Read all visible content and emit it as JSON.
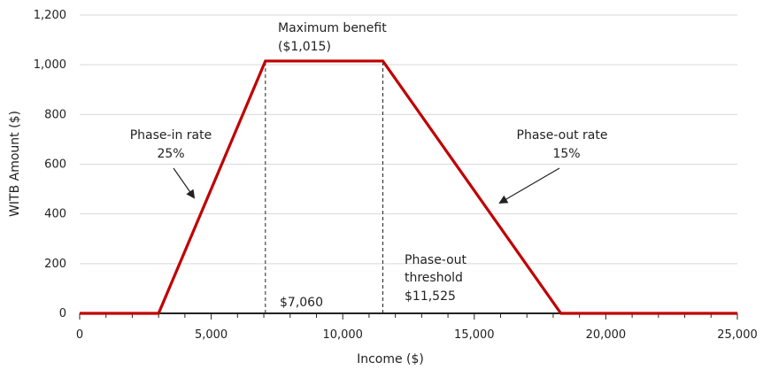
{
  "chart_data": {
    "type": "line",
    "title": "",
    "xlabel": "Income ($)",
    "ylabel": "WITB Amount ($)",
    "xlim": [
      0,
      25000
    ],
    "ylim": [
      0,
      1200
    ],
    "x_ticks": [
      0,
      5000,
      10000,
      15000,
      20000,
      25000
    ],
    "x_tick_labels": [
      "0",
      "5,000",
      "10,000",
      "15,000",
      "20,000",
      "25,000"
    ],
    "y_ticks": [
      0,
      200,
      400,
      600,
      800,
      1000,
      1200
    ],
    "y_tick_labels": [
      "0",
      "200",
      "400",
      "600",
      "800",
      "1,000",
      "1,200"
    ],
    "grid": "horizontal",
    "series": [
      {
        "color": "#c00000",
        "x": [
          0,
          3000,
          7060,
          11525,
          18292,
          25000
        ],
        "y": [
          0,
          0,
          1015,
          1015,
          0,
          0
        ]
      }
    ],
    "reference_lines": [
      {
        "x": 7060,
        "style": "dashed"
      },
      {
        "x": 11525,
        "style": "dashed"
      }
    ],
    "annotations": {
      "max_benefit": [
        "Maximum benefit",
        "($1,015)"
      ],
      "phase_in": [
        "Phase-in rate",
        "25%"
      ],
      "phase_out": [
        "Phase-out rate",
        "15%"
      ],
      "threshold": [
        "Phase-out",
        "threshold",
        "$11,525"
      ],
      "start": "$7,060"
    }
  }
}
